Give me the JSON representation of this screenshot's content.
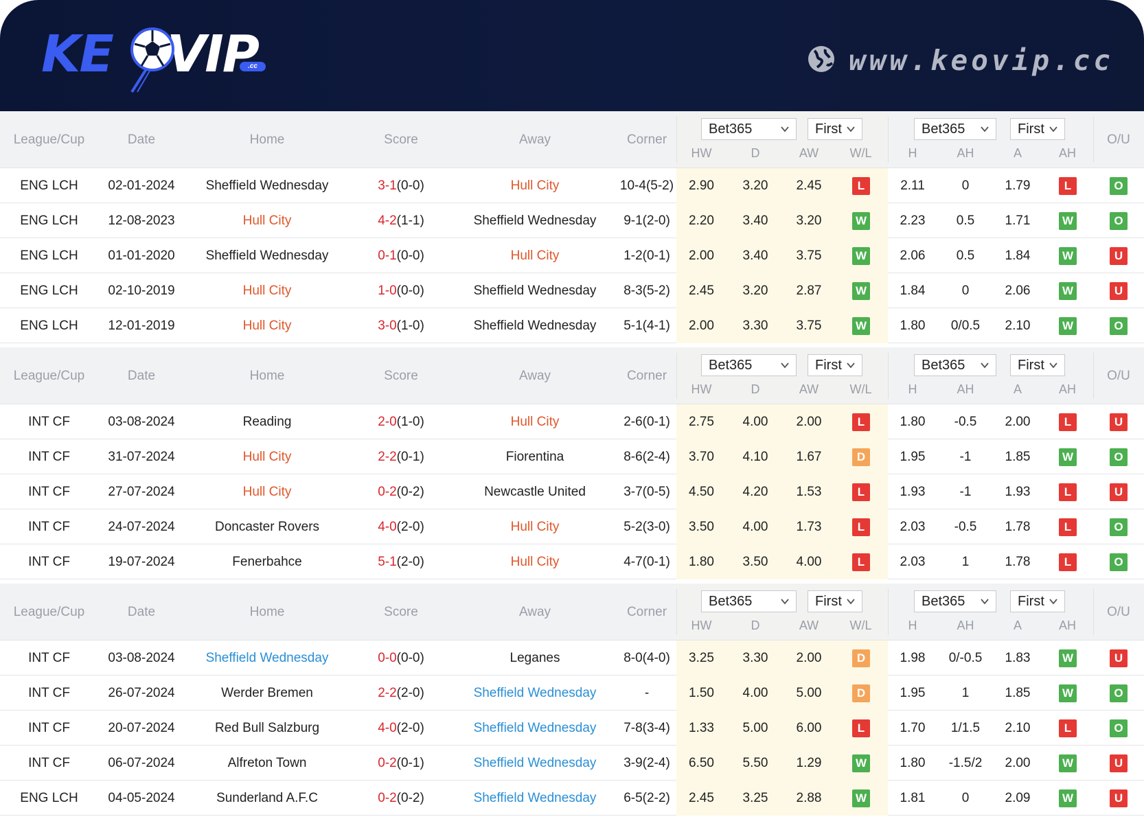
{
  "brand": {
    "logo_ke": "KE",
    "logo_vip": "VIP",
    "logo_cc": ".cc",
    "url": "www.keovip.cc",
    "colors": {
      "header_bg": "#0d1837",
      "logo_blue": "#3a5cf0",
      "url_gray": "#b3b7c4"
    },
    "icons": [
      "soccer-ball-icon",
      "globe-icon"
    ]
  },
  "columns": {
    "league": "League/Cup",
    "date": "Date",
    "home": "Home",
    "score": "Score",
    "away": "Away",
    "corner": "Corner",
    "hw": "HW",
    "d": "D",
    "aw": "AW",
    "wl": "W/L",
    "h": "H",
    "ah": "AH",
    "a": "A",
    "ah_result": "AH",
    "ou": "O/U"
  },
  "colors": {
    "team_highlight_hull": "#e0572b",
    "team_highlight_sheffield": "#2a8fd6",
    "score_red": "#d9262c",
    "win": "#4caf50",
    "loss": "#e53935",
    "draw": "#f5a55a"
  },
  "tables": [
    {
      "selects": {
        "odds_company": "Bet365",
        "odds_period": "First",
        "ah_company": "Bet365",
        "ah_period": "First"
      },
      "rows": [
        {
          "league": "ENG LCH",
          "date": "02-01-2024",
          "home": "Sheffield Wednesday",
          "home_hl": "",
          "score_ft": "3-1",
          "score_ht": "(0-0)",
          "away": "Hull City",
          "away_hl": "red",
          "corner": "10-4(5-2)",
          "hw": "2.90",
          "d": "3.20",
          "aw": "2.45",
          "wl": "L",
          "h": "2.11",
          "ah": "0",
          "a": "1.79",
          "ah_res": "L",
          "ou": "O"
        },
        {
          "league": "ENG LCH",
          "date": "12-08-2023",
          "home": "Hull City",
          "home_hl": "red",
          "score_ft": "4-2",
          "score_ht": "(1-1)",
          "away": "Sheffield Wednesday",
          "away_hl": "",
          "corner": "9-1(2-0)",
          "hw": "2.20",
          "d": "3.40",
          "aw": "3.20",
          "wl": "W",
          "h": "2.23",
          "ah": "0.5",
          "a": "1.71",
          "ah_res": "W",
          "ou": "O"
        },
        {
          "league": "ENG LCH",
          "date": "01-01-2020",
          "home": "Sheffield Wednesday",
          "home_hl": "",
          "score_ft": "0-1",
          "score_ht": "(0-0)",
          "away": "Hull City",
          "away_hl": "red",
          "corner": "1-2(0-1)",
          "hw": "2.00",
          "d": "3.40",
          "aw": "3.75",
          "wl": "W",
          "h": "2.06",
          "ah": "0.5",
          "a": "1.84",
          "ah_res": "W",
          "ou": "U"
        },
        {
          "league": "ENG LCH",
          "date": "02-10-2019",
          "home": "Hull City",
          "home_hl": "red",
          "score_ft": "1-0",
          "score_ht": "(0-0)",
          "away": "Sheffield Wednesday",
          "away_hl": "",
          "corner": "8-3(5-2)",
          "hw": "2.45",
          "d": "3.20",
          "aw": "2.87",
          "wl": "W",
          "h": "1.84",
          "ah": "0",
          "a": "2.06",
          "ah_res": "W",
          "ou": "U"
        },
        {
          "league": "ENG LCH",
          "date": "12-01-2019",
          "home": "Hull City",
          "home_hl": "red",
          "score_ft": "3-0",
          "score_ht": "(1-0)",
          "away": "Sheffield Wednesday",
          "away_hl": "",
          "corner": "5-1(4-1)",
          "hw": "2.00",
          "d": "3.30",
          "aw": "3.75",
          "wl": "W",
          "h": "1.80",
          "ah": "0/0.5",
          "a": "2.10",
          "ah_res": "W",
          "ou": "O"
        }
      ]
    },
    {
      "selects": {
        "odds_company": "Bet365",
        "odds_period": "First",
        "ah_company": "Bet365",
        "ah_period": "First"
      },
      "rows": [
        {
          "league": "INT CF",
          "date": "03-08-2024",
          "home": "Reading",
          "home_hl": "",
          "score_ft": "2-0",
          "score_ht": "(1-0)",
          "away": "Hull City",
          "away_hl": "red",
          "corner": "2-6(0-1)",
          "hw": "2.75",
          "d": "4.00",
          "aw": "2.00",
          "wl": "L",
          "h": "1.80",
          "ah": "-0.5",
          "a": "2.00",
          "ah_res": "L",
          "ou": "U"
        },
        {
          "league": "INT CF",
          "date": "31-07-2024",
          "home": "Hull City",
          "home_hl": "red",
          "score_ft": "2-2",
          "score_ht": "(0-1)",
          "away": "Fiorentina",
          "away_hl": "",
          "corner": "8-6(2-4)",
          "hw": "3.70",
          "d": "4.10",
          "aw": "1.67",
          "wl": "D",
          "h": "1.95",
          "ah": "-1",
          "a": "1.85",
          "ah_res": "W",
          "ou": "O"
        },
        {
          "league": "INT CF",
          "date": "27-07-2024",
          "home": "Hull City",
          "home_hl": "red",
          "score_ft": "0-2",
          "score_ht": "(0-2)",
          "away": "Newcastle United",
          "away_hl": "",
          "corner": "3-7(0-5)",
          "hw": "4.50",
          "d": "4.20",
          "aw": "1.53",
          "wl": "L",
          "h": "1.93",
          "ah": "-1",
          "a": "1.93",
          "ah_res": "L",
          "ou": "U"
        },
        {
          "league": "INT CF",
          "date": "24-07-2024",
          "home": "Doncaster Rovers",
          "home_hl": "",
          "score_ft": "4-0",
          "score_ht": "(2-0)",
          "away": "Hull City",
          "away_hl": "red",
          "corner": "5-2(3-0)",
          "hw": "3.50",
          "d": "4.00",
          "aw": "1.73",
          "wl": "L",
          "h": "2.03",
          "ah": "-0.5",
          "a": "1.78",
          "ah_res": "L",
          "ou": "O"
        },
        {
          "league": "INT CF",
          "date": "19-07-2024",
          "home": "Fenerbahce",
          "home_hl": "",
          "score_ft": "5-1",
          "score_ht": "(2-0)",
          "away": "Hull City",
          "away_hl": "red",
          "corner": "4-7(0-1)",
          "hw": "1.80",
          "d": "3.50",
          "aw": "4.00",
          "wl": "L",
          "h": "2.03",
          "ah": "1",
          "a": "1.78",
          "ah_res": "L",
          "ou": "O"
        }
      ]
    },
    {
      "selects": {
        "odds_company": "Bet365",
        "odds_period": "First",
        "ah_company": "Bet365",
        "ah_period": "First"
      },
      "rows": [
        {
          "league": "INT CF",
          "date": "03-08-2024",
          "home": "Sheffield Wednesday",
          "home_hl": "blue",
          "score_ft": "0-0",
          "score_ht": "(0-0)",
          "away": "Leganes",
          "away_hl": "",
          "corner": "8-0(4-0)",
          "hw": "3.25",
          "d": "3.30",
          "aw": "2.00",
          "wl": "D",
          "h": "1.98",
          "ah": "0/-0.5",
          "a": "1.83",
          "ah_res": "W",
          "ou": "U"
        },
        {
          "league": "INT CF",
          "date": "26-07-2024",
          "home": "Werder Bremen",
          "home_hl": "",
          "score_ft": "2-2",
          "score_ht": "(2-0)",
          "away": "Sheffield Wednesday",
          "away_hl": "blue",
          "corner": "-",
          "hw": "1.50",
          "d": "4.00",
          "aw": "5.00",
          "wl": "D",
          "h": "1.95",
          "ah": "1",
          "a": "1.85",
          "ah_res": "W",
          "ou": "O"
        },
        {
          "league": "INT CF",
          "date": "20-07-2024",
          "home": "Red Bull Salzburg",
          "home_hl": "",
          "score_ft": "4-0",
          "score_ht": "(2-0)",
          "away": "Sheffield Wednesday",
          "away_hl": "blue",
          "corner": "7-8(3-4)",
          "hw": "1.33",
          "d": "5.00",
          "aw": "6.00",
          "wl": "L",
          "h": "1.70",
          "ah": "1/1.5",
          "a": "2.10",
          "ah_res": "L",
          "ou": "O"
        },
        {
          "league": "INT CF",
          "date": "06-07-2024",
          "home": "Alfreton Town",
          "home_hl": "",
          "score_ft": "0-2",
          "score_ht": "(0-1)",
          "away": "Sheffield Wednesday",
          "away_hl": "blue",
          "corner": "3-9(2-4)",
          "hw": "6.50",
          "d": "5.50",
          "aw": "1.29",
          "wl": "W",
          "h": "1.80",
          "ah": "-1.5/2",
          "a": "2.00",
          "ah_res": "W",
          "ou": "U"
        },
        {
          "league": "ENG LCH",
          "date": "04-05-2024",
          "home": "Sunderland A.F.C",
          "home_hl": "",
          "score_ft": "0-2",
          "score_ht": "(0-2)",
          "away": "Sheffield Wednesday",
          "away_hl": "blue",
          "corner": "6-5(2-2)",
          "hw": "2.45",
          "d": "3.25",
          "aw": "2.88",
          "wl": "W",
          "h": "1.81",
          "ah": "0",
          "a": "2.09",
          "ah_res": "W",
          "ou": "U"
        }
      ]
    }
  ]
}
